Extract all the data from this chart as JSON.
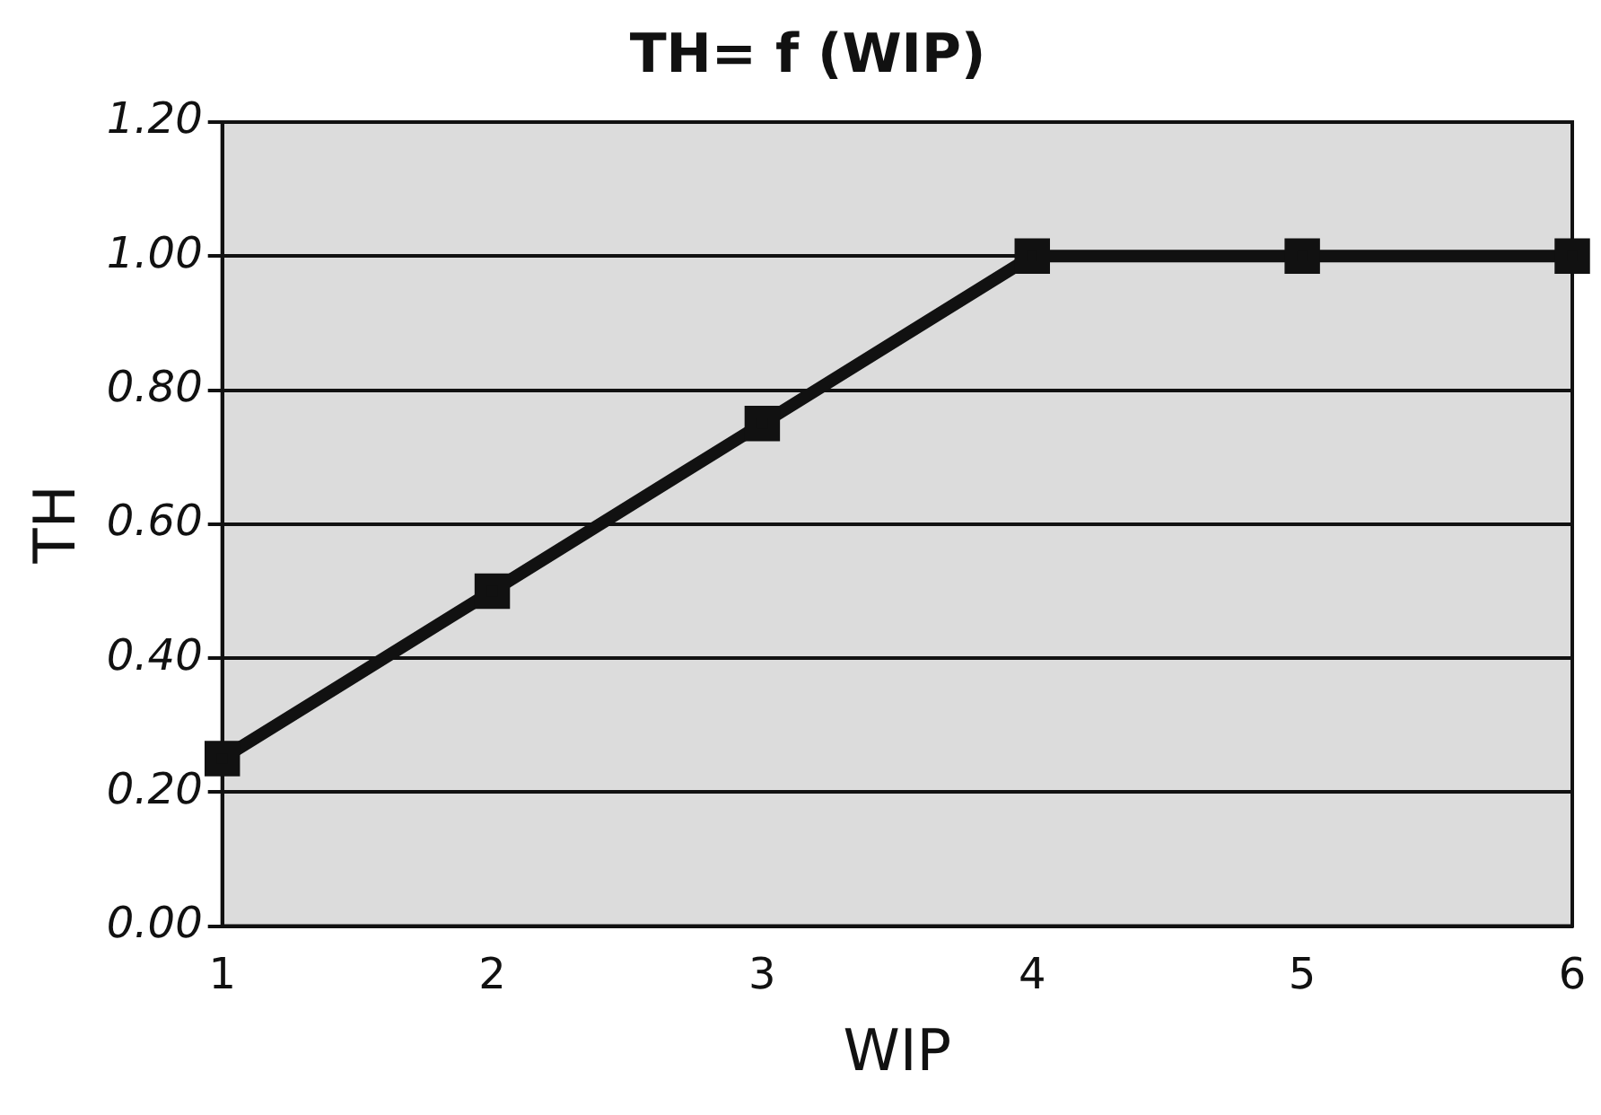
{
  "chart_data": {
    "type": "line",
    "title": "TH= f (WIP)",
    "xlabel": "WIP",
    "ylabel": "TH",
    "categories": [
      "1",
      "2",
      "3",
      "4",
      "5",
      "6"
    ],
    "series": [
      {
        "color": "#111111",
        "values": [
          0.25,
          0.5,
          0.75,
          1.0,
          1.0,
          1.0
        ]
      }
    ],
    "ylim": [
      0,
      1.2
    ],
    "yticks": [
      {
        "value": 0,
        "label": "0.00"
      },
      {
        "value": 0.2,
        "label": "0.20"
      },
      {
        "value": 0.4,
        "label": "0.40"
      },
      {
        "value": 0.6,
        "label": "0.60"
      },
      {
        "value": 0.8,
        "label": "0.80"
      },
      {
        "value": 1.0,
        "label": "1.00"
      },
      {
        "value": 1.2,
        "label": "1.20"
      }
    ],
    "grid": "y",
    "legend": false,
    "marker": "square",
    "line_style": "solid"
  }
}
